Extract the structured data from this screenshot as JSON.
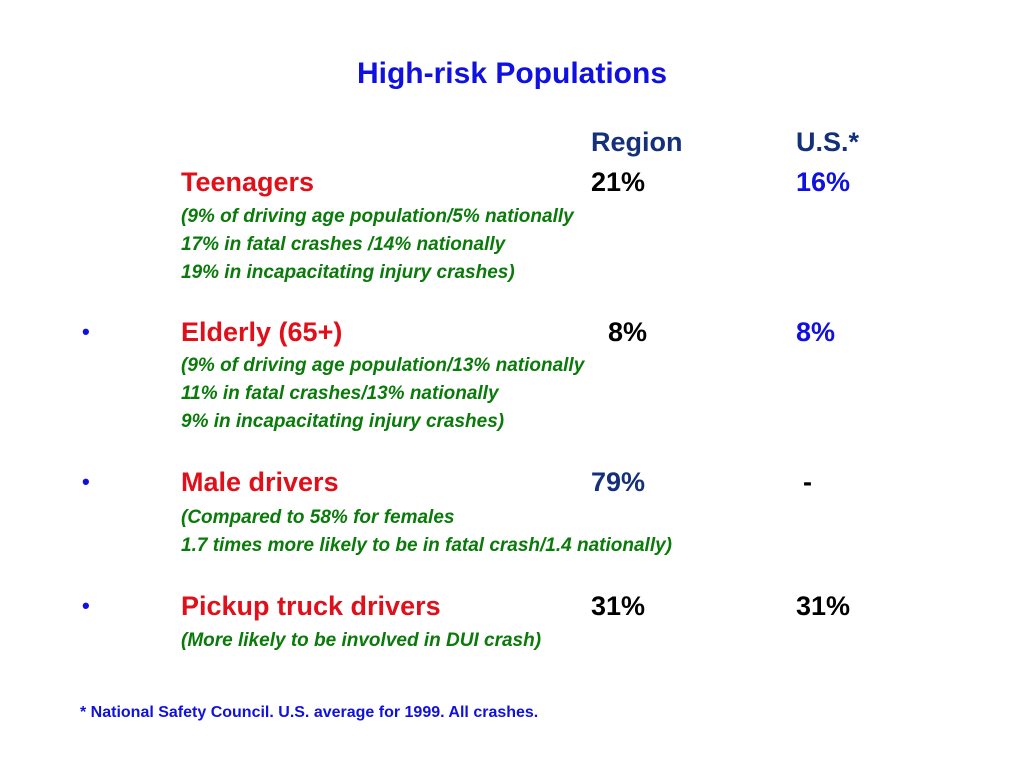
{
  "title": "High-risk Populations",
  "columns": {
    "region": "Region",
    "us": "U.S.*"
  },
  "bullet_symbol": "•",
  "rows": [
    {
      "label": "Teenagers",
      "region": "21%",
      "us": "16%",
      "notes": [
        "(9% of driving age population/5% nationally",
        "17% in fatal crashes /14% nationally",
        "19% in incapacitating injury crashes)"
      ]
    },
    {
      "label": "Elderly (65+)",
      "region": "8%",
      "us": "8%",
      "notes": [
        "(9% of driving age population/13% nationally",
        "11% in fatal crashes/13% nationally",
        "9% in incapacitating injury crashes)"
      ]
    },
    {
      "label": "Male drivers",
      "region": "79%",
      "us": "-",
      "notes": [
        "(Compared to 58% for females",
        "1.7 times more likely to be in fatal crash/1.4 nationally)"
      ]
    },
    {
      "label": "Pickup truck drivers",
      "region": "31%",
      "us": "31%",
      "notes": [
        "(More likely to be involved in DUI crash)"
      ]
    }
  ],
  "footnote": "* National Safety Council.  U.S. average for 1999.  All crashes."
}
